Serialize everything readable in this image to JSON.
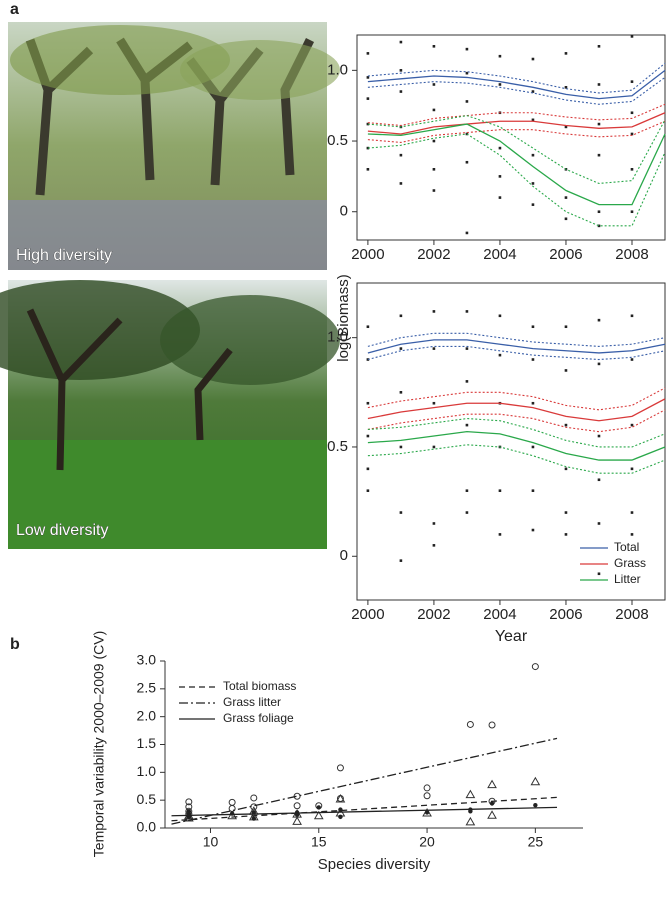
{
  "panel_labels": [
    "a",
    "b"
  ],
  "photos": [
    {
      "label": "High diversity"
    },
    {
      "label": "Low diversity"
    }
  ],
  "chart_data": [
    {
      "type": "line",
      "ylabel": "log(Biomass)",
      "x": [
        2000,
        2001,
        2002,
        2003,
        2004,
        2005,
        2006,
        2007,
        2008,
        2009
      ],
      "xlim": [
        1999.67,
        2009
      ],
      "xticks": [
        2000,
        2002,
        2004,
        2006,
        2008
      ],
      "ylim": [
        -0.2,
        1.25
      ],
      "yticks": [
        0,
        0.5,
        {
          "value": 1,
          "label": "1.0"
        }
      ],
      "series": [
        {
          "color": "#3a5fa8",
          "values": [
            0.92,
            0.94,
            0.96,
            0.95,
            0.92,
            0.88,
            0.83,
            0.8,
            0.82,
            1.0
          ],
          "ci_upper": [
            0.96,
            0.98,
            1.0,
            0.99,
            0.96,
            0.92,
            0.87,
            0.84,
            0.86,
            1.05
          ],
          "ci_lower": [
            0.88,
            0.9,
            0.92,
            0.91,
            0.88,
            0.84,
            0.79,
            0.76,
            0.78,
            0.95
          ]
        },
        {
          "color": "#d93a3a",
          "values": [
            0.57,
            0.55,
            0.6,
            0.62,
            0.64,
            0.64,
            0.61,
            0.59,
            0.6,
            0.7
          ],
          "ci_upper": [
            0.63,
            0.61,
            0.66,
            0.68,
            0.7,
            0.7,
            0.67,
            0.65,
            0.66,
            0.76
          ],
          "ci_lower": [
            0.51,
            0.49,
            0.54,
            0.56,
            0.58,
            0.58,
            0.55,
            0.53,
            0.54,
            0.64
          ]
        },
        {
          "color": "#2aa84a",
          "values": [
            0.55,
            0.54,
            0.58,
            0.62,
            0.5,
            0.32,
            0.15,
            0.05,
            0.05,
            0.55
          ],
          "ci_upper": [
            0.62,
            0.6,
            0.64,
            0.68,
            0.6,
            0.45,
            0.3,
            0.2,
            0.22,
            0.65
          ],
          "ci_lower": [
            0.45,
            0.47,
            0.52,
            0.55,
            0.4,
            0.18,
            0.0,
            -0.1,
            -0.1,
            0.42
          ]
        }
      ],
      "points": {
        "color": "#222222",
        "x": [
          2000,
          2000,
          2000,
          2000,
          2000,
          2000,
          2001,
          2001,
          2001,
          2001,
          2001,
          2001,
          2002,
          2002,
          2002,
          2002,
          2002,
          2002,
          2003,
          2003,
          2003,
          2003,
          2003,
          2003,
          2004,
          2004,
          2004,
          2004,
          2004,
          2004,
          2005,
          2005,
          2005,
          2005,
          2005,
          2005,
          2006,
          2006,
          2006,
          2006,
          2006,
          2006,
          2007,
          2007,
          2007,
          2007,
          2007,
          2007,
          2008,
          2008,
          2008,
          2008,
          2008,
          2008
        ],
        "values": [
          1.12,
          0.95,
          0.8,
          0.62,
          0.45,
          0.3,
          1.2,
          1.0,
          0.85,
          0.6,
          0.4,
          0.2,
          1.17,
          0.9,
          0.72,
          0.5,
          0.3,
          0.15,
          1.15,
          0.98,
          0.78,
          0.55,
          0.35,
          -0.15,
          1.1,
          0.9,
          0.7,
          0.45,
          0.25,
          0.1,
          1.08,
          0.85,
          0.65,
          0.4,
          0.2,
          0.05,
          1.12,
          0.88,
          0.6,
          0.3,
          0.1,
          -0.05,
          1.17,
          0.9,
          0.62,
          0.4,
          0.0,
          -0.1,
          1.24,
          0.92,
          0.7,
          0.55,
          0.3,
          0.0
        ]
      }
    },
    {
      "type": "line",
      "xlabel": "Year",
      "legend": "lower right",
      "x": [
        2000,
        2001,
        2002,
        2003,
        2004,
        2005,
        2006,
        2007,
        2008,
        2009
      ],
      "xlim": [
        1999.67,
        2009
      ],
      "xticks": [
        2000,
        2002,
        2004,
        2006,
        2008
      ],
      "ylim": [
        -0.2,
        1.25
      ],
      "yticks": [
        0,
        0.5,
        {
          "value": 1,
          "label": "1.0"
        }
      ],
      "series": [
        {
          "name": "Total",
          "color": "#3a5fa8",
          "values": [
            0.93,
            0.97,
            0.99,
            0.99,
            0.97,
            0.95,
            0.94,
            0.93,
            0.94,
            0.97
          ],
          "ci_upper": [
            0.96,
            1.0,
            1.02,
            1.02,
            1.0,
            0.98,
            0.97,
            0.96,
            0.97,
            1.0
          ],
          "ci_lower": [
            0.9,
            0.94,
            0.96,
            0.96,
            0.94,
            0.92,
            0.91,
            0.9,
            0.91,
            0.94
          ]
        },
        {
          "name": "Grass",
          "color": "#d93a3a",
          "values": [
            0.63,
            0.66,
            0.68,
            0.7,
            0.7,
            0.68,
            0.64,
            0.62,
            0.64,
            0.72
          ],
          "ci_upper": [
            0.68,
            0.71,
            0.73,
            0.75,
            0.75,
            0.73,
            0.69,
            0.67,
            0.69,
            0.77
          ],
          "ci_lower": [
            0.58,
            0.61,
            0.63,
            0.65,
            0.65,
            0.63,
            0.59,
            0.57,
            0.59,
            0.67
          ]
        },
        {
          "name": "Litter",
          "color": "#2aa84a",
          "values": [
            0.52,
            0.53,
            0.55,
            0.57,
            0.56,
            0.52,
            0.47,
            0.44,
            0.44,
            0.5
          ],
          "ci_upper": [
            0.58,
            0.59,
            0.61,
            0.63,
            0.62,
            0.58,
            0.53,
            0.5,
            0.5,
            0.56
          ],
          "ci_lower": [
            0.46,
            0.47,
            0.49,
            0.51,
            0.5,
            0.46,
            0.41,
            0.38,
            0.38,
            0.44
          ]
        }
      ],
      "points": {
        "color": "#222222",
        "x": [
          2000,
          2000,
          2000,
          2000,
          2000,
          2000,
          2001,
          2001,
          2001,
          2001,
          2001,
          2001,
          2002,
          2002,
          2002,
          2002,
          2002,
          2002,
          2003,
          2003,
          2003,
          2003,
          2003,
          2003,
          2004,
          2004,
          2004,
          2004,
          2004,
          2004,
          2005,
          2005,
          2005,
          2005,
          2005,
          2005,
          2006,
          2006,
          2006,
          2006,
          2006,
          2006,
          2007,
          2007,
          2007,
          2007,
          2007,
          2007,
          2008,
          2008,
          2008,
          2008,
          2008,
          2008
        ],
        "values": [
          1.05,
          0.9,
          0.7,
          0.55,
          0.4,
          0.3,
          1.1,
          0.95,
          0.75,
          0.5,
          0.2,
          -0.02,
          1.12,
          0.95,
          0.7,
          0.5,
          0.15,
          0.05,
          1.12,
          0.95,
          0.8,
          0.6,
          0.3,
          0.2,
          1.1,
          0.92,
          0.7,
          0.5,
          0.3,
          0.1,
          1.05,
          0.9,
          0.7,
          0.5,
          0.3,
          0.12,
          1.05,
          0.85,
          0.6,
          0.4,
          0.2,
          0.1,
          1.08,
          0.88,
          0.55,
          0.35,
          0.15,
          -0.08,
          1.1,
          0.9,
          0.6,
          0.4,
          0.2,
          0.1
        ]
      }
    },
    {
      "type": "scatter",
      "xlabel": "Species diversity",
      "ylabel": "Temporal variability 2000–2009 (CV)",
      "xlim": [
        7.9,
        27.2
      ],
      "xticks": [
        10,
        15,
        20,
        25
      ],
      "ylim": [
        0,
        3
      ],
      "yticks": [
        {
          "value": 0,
          "label": "0.0"
        },
        0.5,
        {
          "value": 1,
          "label": "1.0"
        },
        1.5,
        {
          "value": 2,
          "label": "2.0"
        },
        2.5,
        {
          "value": 3,
          "label": "3.0"
        }
      ],
      "legend": "upper left",
      "series": [
        {
          "name": "Total biomass",
          "line_style": "dashed",
          "marker": "triangle",
          "x": [
            9,
            9,
            11,
            12,
            12,
            14,
            14,
            15,
            16,
            16,
            20,
            22,
            22,
            23,
            23,
            25
          ],
          "values": [
            0.18,
            0.22,
            0.22,
            0.3,
            0.2,
            0.12,
            0.25,
            0.22,
            0.52,
            0.27,
            0.27,
            0.6,
            0.11,
            0.78,
            0.23,
            0.83
          ],
          "fit_x": [
            8.2,
            26
          ],
          "fit_values": [
            0.13,
            0.55
          ]
        },
        {
          "name": "Grass litter",
          "line_style": "dashdot",
          "marker": "circle",
          "x": [
            9,
            9,
            9,
            9,
            11,
            11,
            12,
            12,
            14,
            14,
            15,
            16,
            16,
            20,
            20,
            22,
            23,
            23,
            25
          ],
          "values": [
            0.47,
            0.38,
            0.3,
            0.25,
            0.46,
            0.35,
            0.54,
            0.38,
            0.57,
            0.4,
            0.4,
            1.08,
            0.53,
            0.72,
            0.58,
            1.86,
            1.85,
            0.48,
            2.9
          ],
          "fit_x": [
            8.2,
            26
          ],
          "fit_values": [
            0.07,
            1.61
          ]
        },
        {
          "name": "Grass foliage",
          "line_style": "solid",
          "marker": "dot",
          "x": [
            9,
            9,
            9,
            11,
            12,
            12,
            14,
            14,
            15,
            16,
            16,
            20,
            22,
            22,
            23,
            25
          ],
          "values": [
            0.2,
            0.25,
            0.3,
            0.26,
            0.17,
            0.28,
            0.28,
            0.24,
            0.37,
            0.2,
            0.33,
            0.28,
            0.3,
            0.33,
            0.44,
            0.41
          ],
          "fit_x": [
            8.2,
            26
          ],
          "fit_values": [
            0.22,
            0.37
          ]
        }
      ]
    }
  ]
}
